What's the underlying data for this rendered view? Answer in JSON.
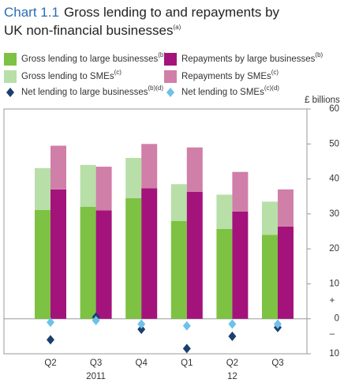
{
  "chart_data": {
    "type": "stacked_bar_pairs",
    "title_label": "Chart 1.1",
    "title": "Gross lending to and repayments by",
    "title_line2": "UK non-financial businesses",
    "title_note": "(a)",
    "y_axis_label": "£ billions",
    "plus_sign": "+",
    "minus_sign": "–",
    "categories": [
      "Q2",
      "Q3",
      "Q4",
      "Q1",
      "Q2",
      "Q3"
    ],
    "years": [
      null,
      "2011",
      null,
      null,
      "12",
      null
    ],
    "ylim": [
      -10,
      60
    ],
    "yticks": [
      {
        "value": -10,
        "label": "10"
      },
      0,
      10,
      20,
      30,
      40,
      50,
      60
    ],
    "series": [
      {
        "name": "Gross lending to large businesses",
        "note": "(b)",
        "color": "#7dc242",
        "stack": "gross",
        "kind": "bar",
        "values": [
          31.1,
          32,
          34.5,
          28,
          25.7,
          24
        ]
      },
      {
        "name": "Gross lending to SMEs",
        "note": "(c)",
        "color": "#b8dfa8",
        "stack": "gross",
        "kind": "bar",
        "values": [
          12,
          12,
          11.5,
          10.5,
          9.8,
          9.5
        ]
      },
      {
        "name": "Repayments by large businesses",
        "note": "(b)",
        "color": "#a3137b",
        "stack": "repay",
        "kind": "bar",
        "values": [
          37,
          31,
          37.3,
          36.3,
          30.7,
          26.4
        ]
      },
      {
        "name": "Repayments by SMEs",
        "note": "(c)",
        "color": "#d07fa8",
        "stack": "repay",
        "kind": "bar",
        "values": [
          12.5,
          12.5,
          12.7,
          12.7,
          11.3,
          10.6
        ]
      },
      {
        "name": "Net lending to large businesses",
        "note": "(b)(d)",
        "color": "#1b3f6e",
        "kind": "diamond",
        "values": [
          -6,
          0.5,
          -3,
          -8.5,
          -5,
          -2.5
        ]
      },
      {
        "name": "Net lending to SMEs",
        "note": "(c)(d)",
        "color": "#6ec1e8",
        "kind": "diamond",
        "values": [
          -1,
          -0.5,
          -1.5,
          -2,
          -1.5,
          -1.5
        ]
      }
    ]
  }
}
